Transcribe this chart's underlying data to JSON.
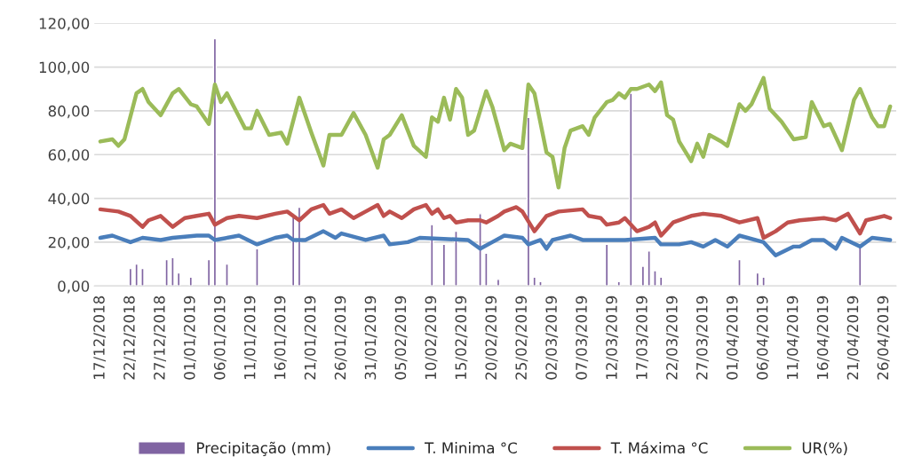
{
  "chart_data": {
    "type": "line",
    "xlim": [
      "2018-12-16",
      "2019-04-28"
    ],
    "ylim": [
      0,
      120
    ],
    "xticks": [
      {
        "value": "2018-12-17",
        "label": "17/12/2018"
      },
      {
        "value": "2018-12-22",
        "label": "22/12/2018"
      },
      {
        "value": "2018-12-27",
        "label": "27/12/2018"
      },
      {
        "value": "2019-01-01",
        "label": "01/01/2019"
      },
      {
        "value": "2019-01-06",
        "label": "06/01/2019"
      },
      {
        "value": "2019-01-11",
        "label": "11/01/2019"
      },
      {
        "value": "2019-01-16",
        "label": "16/01/2019"
      },
      {
        "value": "2019-01-21",
        "label": "21/01/2019"
      },
      {
        "value": "2019-01-26",
        "label": "26/01/2019"
      },
      {
        "value": "2019-01-31",
        "label": "31/01/2019"
      },
      {
        "value": "2019-02-05",
        "label": "05/02/2019"
      },
      {
        "value": "2019-02-10",
        "label": "10/02/2019"
      },
      {
        "value": "2019-02-15",
        "label": "15/02/2019"
      },
      {
        "value": "2019-02-20",
        "label": "20/02/2019"
      },
      {
        "value": "2019-02-25",
        "label": "25/02/2019"
      },
      {
        "value": "2019-03-02",
        "label": "02/03/2019"
      },
      {
        "value": "2019-03-07",
        "label": "07/03/2019"
      },
      {
        "value": "2019-03-12",
        "label": "12/03/2019"
      },
      {
        "value": "2019-03-17",
        "label": "17/03/2019"
      },
      {
        "value": "2019-03-22",
        "label": "22/03/2019"
      },
      {
        "value": "2019-03-27",
        "label": "27/03/2019"
      },
      {
        "value": "2019-04-01",
        "label": "01/04/2019"
      },
      {
        "value": "2019-04-06",
        "label": "06/04/2019"
      },
      {
        "value": "2019-04-11",
        "label": "11/04/2019"
      },
      {
        "value": "2019-04-16",
        "label": "16/04/2019"
      },
      {
        "value": "2019-04-21",
        "label": "21/04/2019"
      },
      {
        "value": "2019-04-26",
        "label": "26/04/2019"
      }
    ],
    "yticks": [
      {
        "value": 0,
        "label": "0,00"
      },
      {
        "value": 20,
        "label": "20,00"
      },
      {
        "value": 40,
        "label": "40,00"
      },
      {
        "value": 60,
        "label": "60,00"
      },
      {
        "value": 80,
        "label": "80,00"
      },
      {
        "value": 100,
        "label": "100,00"
      },
      {
        "value": 120,
        "label": "120,00"
      }
    ],
    "grid": "y",
    "legend": "bottom",
    "marker": "none",
    "line_style": "solid",
    "series": [
      {
        "name": "Precipitação (mm)",
        "type": "bar",
        "color": "#8064a2",
        "x": [
          "2018-12-22",
          "2018-12-23",
          "2018-12-24",
          "2018-12-28",
          "2018-12-29",
          "2018-12-30",
          "2019-01-01",
          "2019-01-04",
          "2019-01-05",
          "2019-01-07",
          "2019-01-12",
          "2019-01-18",
          "2019-01-19",
          "2019-02-10",
          "2019-02-12",
          "2019-02-14",
          "2019-02-18",
          "2019-02-19",
          "2019-02-21",
          "2019-02-26",
          "2019-02-27",
          "2019-02-28",
          "2019-03-11",
          "2019-03-13",
          "2019-03-15",
          "2019-03-17",
          "2019-03-18",
          "2019-03-19",
          "2019-03-20",
          "2019-04-02",
          "2019-04-05",
          "2019-04-06",
          "2019-04-22"
        ],
        "values": [
          8,
          10,
          8,
          12,
          13,
          6,
          4,
          12,
          113,
          10,
          17,
          33,
          36,
          28,
          19,
          25,
          33,
          15,
          3,
          77,
          4,
          2,
          19,
          2,
          88,
          9,
          16,
          7,
          4,
          12,
          6,
          4,
          18
        ]
      },
      {
        "name": "T. Minima °C",
        "color": "#4a7ebb",
        "x": [
          "2018-12-17",
          "2018-12-19",
          "2018-12-20",
          "2018-12-22",
          "2018-12-24",
          "2018-12-27",
          "2018-12-29",
          "2019-01-02",
          "2019-01-04",
          "2019-01-05",
          "2019-01-09",
          "2019-01-12",
          "2019-01-15",
          "2019-01-17",
          "2019-01-18",
          "2019-01-20",
          "2019-01-23",
          "2019-01-25",
          "2019-01-26",
          "2019-01-30",
          "2019-02-02",
          "2019-02-03",
          "2019-02-06",
          "2019-02-08",
          "2019-02-16",
          "2019-02-18",
          "2019-02-20",
          "2019-02-22",
          "2019-02-25",
          "2019-02-26",
          "2019-02-28",
          "2019-03-01",
          "2019-03-02",
          "2019-03-05",
          "2019-03-07",
          "2019-03-14",
          "2019-03-19",
          "2019-03-20",
          "2019-03-23",
          "2019-03-25",
          "2019-03-27",
          "2019-03-29",
          "2019-03-31",
          "2019-04-02",
          "2019-04-06",
          "2019-04-08",
          "2019-04-11",
          "2019-04-12",
          "2019-04-14",
          "2019-04-16",
          "2019-04-18",
          "2019-04-19",
          "2019-04-22",
          "2019-04-24",
          "2019-04-27"
        ],
        "values": [
          22,
          23,
          22,
          20,
          22,
          21,
          22,
          23,
          23,
          21,
          23,
          19,
          22,
          23,
          21,
          21,
          25,
          22,
          24,
          21,
          23,
          19,
          20,
          22,
          21,
          17,
          20,
          23,
          22,
          19,
          21,
          17,
          21,
          23,
          21,
          21,
          22,
          19,
          19,
          20,
          18,
          21,
          18,
          23,
          20,
          14,
          18,
          18,
          21,
          21,
          17,
          22,
          18,
          22,
          21
        ]
      },
      {
        "name": "T. Máxima °C",
        "color": "#c0504d",
        "x": [
          "2018-12-17",
          "2018-12-20",
          "2018-12-22",
          "2018-12-24",
          "2018-12-25",
          "2018-12-27",
          "2018-12-29",
          "2018-12-31",
          "2019-01-02",
          "2019-01-04",
          "2019-01-05",
          "2019-01-07",
          "2019-01-09",
          "2019-01-12",
          "2019-01-15",
          "2019-01-17",
          "2019-01-19",
          "2019-01-21",
          "2019-01-23",
          "2019-01-24",
          "2019-01-26",
          "2019-01-28",
          "2019-01-30",
          "2019-02-01",
          "2019-02-02",
          "2019-02-03",
          "2019-02-05",
          "2019-02-07",
          "2019-02-09",
          "2019-02-10",
          "2019-02-11",
          "2019-02-12",
          "2019-02-13",
          "2019-02-14",
          "2019-02-16",
          "2019-02-18",
          "2019-02-19",
          "2019-02-21",
          "2019-02-22",
          "2019-02-24",
          "2019-02-25",
          "2019-02-27",
          "2019-03-01",
          "2019-03-03",
          "2019-03-07",
          "2019-03-08",
          "2019-03-10",
          "2019-03-11",
          "2019-03-13",
          "2019-03-14",
          "2019-03-16",
          "2019-03-18",
          "2019-03-19",
          "2019-03-20",
          "2019-03-22",
          "2019-03-25",
          "2019-03-27",
          "2019-03-30",
          "2019-04-02",
          "2019-04-05",
          "2019-04-06",
          "2019-04-08",
          "2019-04-10",
          "2019-04-12",
          "2019-04-16",
          "2019-04-18",
          "2019-04-20",
          "2019-04-22",
          "2019-04-23",
          "2019-04-26",
          "2019-04-27"
        ],
        "values": [
          35,
          34,
          32,
          27,
          30,
          32,
          27,
          31,
          32,
          33,
          28,
          31,
          32,
          31,
          33,
          34,
          30,
          35,
          37,
          33,
          35,
          31,
          34,
          37,
          32,
          34,
          31,
          35,
          37,
          33,
          35,
          31,
          32,
          29,
          30,
          30,
          29,
          32,
          34,
          36,
          34,
          25,
          32,
          34,
          35,
          32,
          31,
          28,
          29,
          31,
          25,
          27,
          29,
          23,
          29,
          32,
          33,
          32,
          29,
          31,
          22,
          25,
          29,
          30,
          31,
          30,
          33,
          24,
          30,
          32,
          31
        ]
      },
      {
        "name": "UR(%)",
        "color": "#9bbb59",
        "x": [
          "2018-12-17",
          "2018-12-19",
          "2018-12-20",
          "2018-12-21",
          "2018-12-23",
          "2018-12-24",
          "2018-12-25",
          "2018-12-27",
          "2018-12-29",
          "2018-12-30",
          "2019-01-01",
          "2019-01-02",
          "2019-01-04",
          "2019-01-05",
          "2019-01-06",
          "2019-01-07",
          "2019-01-10",
          "2019-01-11",
          "2019-01-12",
          "2019-01-14",
          "2019-01-16",
          "2019-01-17",
          "2019-01-19",
          "2019-01-21",
          "2019-01-23",
          "2019-01-24",
          "2019-01-26",
          "2019-01-28",
          "2019-01-30",
          "2019-02-01",
          "2019-02-02",
          "2019-02-03",
          "2019-02-05",
          "2019-02-07",
          "2019-02-09",
          "2019-02-10",
          "2019-02-11",
          "2019-02-12",
          "2019-02-13",
          "2019-02-14",
          "2019-02-15",
          "2019-02-16",
          "2019-02-17",
          "2019-02-19",
          "2019-02-20",
          "2019-02-22",
          "2019-02-23",
          "2019-02-25",
          "2019-02-26",
          "2019-02-27",
          "2019-03-01",
          "2019-03-02",
          "2019-03-03",
          "2019-03-04",
          "2019-03-05",
          "2019-03-07",
          "2019-03-08",
          "2019-03-09",
          "2019-03-11",
          "2019-03-12",
          "2019-03-13",
          "2019-03-14",
          "2019-03-15",
          "2019-03-16",
          "2019-03-18",
          "2019-03-19",
          "2019-03-20",
          "2019-03-21",
          "2019-03-22",
          "2019-03-23",
          "2019-03-25",
          "2019-03-26",
          "2019-03-27",
          "2019-03-28",
          "2019-03-30",
          "2019-03-31",
          "2019-04-02",
          "2019-04-03",
          "2019-04-04",
          "2019-04-06",
          "2019-04-07",
          "2019-04-09",
          "2019-04-11",
          "2019-04-13",
          "2019-04-14",
          "2019-04-16",
          "2019-04-17",
          "2019-04-19",
          "2019-04-21",
          "2019-04-22",
          "2019-04-24",
          "2019-04-25",
          "2019-04-26",
          "2019-04-27"
        ],
        "values": [
          66,
          67,
          64,
          67,
          88,
          90,
          84,
          78,
          88,
          90,
          83,
          82,
          74,
          92,
          84,
          88,
          72,
          72,
          80,
          69,
          70,
          65,
          86,
          70,
          55,
          69,
          69,
          79,
          69,
          54,
          67,
          69,
          78,
          64,
          59,
          77,
          75,
          86,
          76,
          90,
          86,
          69,
          71,
          89,
          82,
          62,
          65,
          63,
          92,
          88,
          61,
          59,
          45,
          63,
          71,
          73,
          69,
          77,
          84,
          85,
          88,
          86,
          90,
          90,
          92,
          89,
          93,
          78,
          76,
          66,
          57,
          65,
          59,
          69,
          66,
          64,
          83,
          80,
          83,
          95,
          81,
          75,
          67,
          68,
          84,
          73,
          74,
          62,
          85,
          90,
          77,
          73,
          73,
          82
        ]
      }
    ]
  }
}
